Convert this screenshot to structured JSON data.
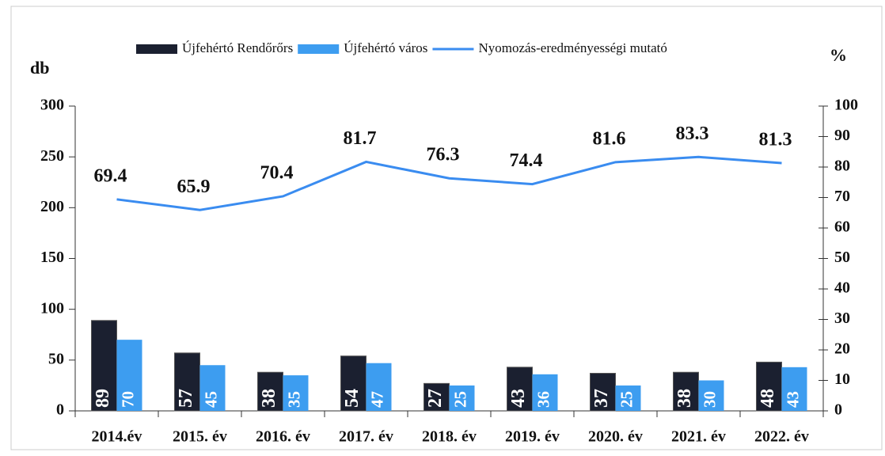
{
  "chart_data": {
    "type": "bar",
    "categories": [
      "2014.év",
      "2015. év",
      "2016. év",
      "2017. év",
      "2018. év",
      "2019. év",
      "2020. év",
      "2021. év",
      "2022. év"
    ],
    "series": [
      {
        "name": "Újfehértó Rendőrőrs",
        "color": "#1b2030",
        "values": [
          89,
          57,
          38,
          54,
          27,
          43,
          37,
          38,
          48
        ]
      },
      {
        "name": "Újfehértó város",
        "color": "#3d9df0",
        "values": [
          70,
          45,
          35,
          47,
          25,
          36,
          25,
          30,
          43
        ]
      },
      {
        "name": "Nyomozás-eredményességi mutató",
        "color": "#3a8cf0",
        "type": "line",
        "axis": "y2",
        "values": [
          69.4,
          65.9,
          70.4,
          81.7,
          76.3,
          74.4,
          81.6,
          83.3,
          81.3
        ]
      }
    ],
    "ylabel": "db",
    "y2label": "%",
    "ylim": [
      0,
      300
    ],
    "yticks": [
      0,
      50,
      100,
      150,
      200,
      250,
      300
    ],
    "y2lim": [
      0,
      100
    ],
    "y2ticks": [
      0,
      10,
      20,
      30,
      40,
      50,
      60,
      70,
      80,
      90,
      100
    ],
    "legend": "top"
  }
}
